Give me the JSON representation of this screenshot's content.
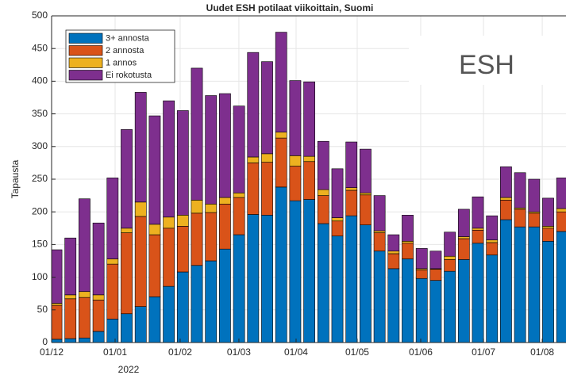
{
  "chart_data": {
    "type": "bar",
    "stacked": true,
    "title": "Uudet ESH potilaat viikoittain, Suomi",
    "ylabel": "Tapausta",
    "xlabel_year": "2022",
    "annotation": "ESH",
    "categories": [
      null,
      null,
      null,
      null,
      null,
      null,
      null,
      null,
      null,
      null,
      null,
      null,
      null,
      null,
      null,
      null,
      null,
      null,
      null,
      null,
      null,
      null,
      null,
      null,
      null,
      null,
      null,
      null,
      null,
      null,
      null,
      null,
      null,
      null,
      null,
      null,
      null
    ],
    "series": [
      {
        "name": "3+ annosta",
        "color": "#0072bd",
        "values": [
          5,
          6,
          7,
          17,
          36,
          44,
          55,
          70,
          86,
          108,
          118,
          125,
          143,
          165,
          196,
          195,
          238,
          217,
          219,
          182,
          163,
          194,
          180,
          140,
          113,
          128,
          98,
          95,
          109,
          127,
          152,
          134,
          188,
          177,
          177,
          155,
          170
        ]
      },
      {
        "name": "2 annosta",
        "color": "#d95319",
        "values": [
          52,
          61,
          62,
          48,
          84,
          124,
          138,
          95,
          89,
          70,
          80,
          74,
          69,
          57,
          79,
          81,
          75,
          53,
          58,
          43,
          23,
          39,
          46,
          28,
          23,
          24,
          13,
          17,
          18,
          32,
          20,
          19,
          30,
          27,
          21,
          20,
          30
        ]
      },
      {
        "name": "1 annos",
        "color": "#edb120",
        "values": [
          3,
          6,
          9,
          8,
          8,
          7,
          22,
          16,
          17,
          17,
          20,
          13,
          10,
          7,
          9,
          13,
          9,
          16,
          8,
          9,
          5,
          4,
          3,
          3,
          4,
          3,
          2,
          1,
          5,
          3,
          3,
          4,
          4,
          2,
          2,
          3,
          5
        ]
      },
      {
        "name": "Ei rokotusta",
        "color": "#7e2f8e",
        "values": [
          82,
          87,
          142,
          110,
          124,
          151,
          168,
          166,
          178,
          160,
          202,
          166,
          159,
          133,
          160,
          141,
          153,
          115,
          114,
          74,
          75,
          70,
          67,
          54,
          25,
          40,
          31,
          27,
          37,
          42,
          48,
          37,
          47,
          54,
          50,
          43,
          47
        ]
      }
    ],
    "xlim": [
      -0.34,
      36.27
    ],
    "xticks": [
      {
        "value": -0.34,
        "label": "01/12"
      },
      {
        "value": 4.18,
        "label": "01/01"
      },
      {
        "value": 8.81,
        "label": "01/02"
      },
      {
        "value": 12.99,
        "label": "01/03"
      },
      {
        "value": 17.06,
        "label": "01/04"
      },
      {
        "value": 21.41,
        "label": "01/05"
      },
      {
        "value": 25.93,
        "label": "01/06"
      },
      {
        "value": 30.4,
        "label": "01/07"
      },
      {
        "value": 34.58,
        "label": "01/08"
      }
    ],
    "ylim": [
      0,
      500
    ],
    "yticks": [
      0,
      50,
      100,
      150,
      200,
      250,
      300,
      350,
      400,
      450,
      500
    ],
    "grid": true,
    "legend": "upper left"
  }
}
